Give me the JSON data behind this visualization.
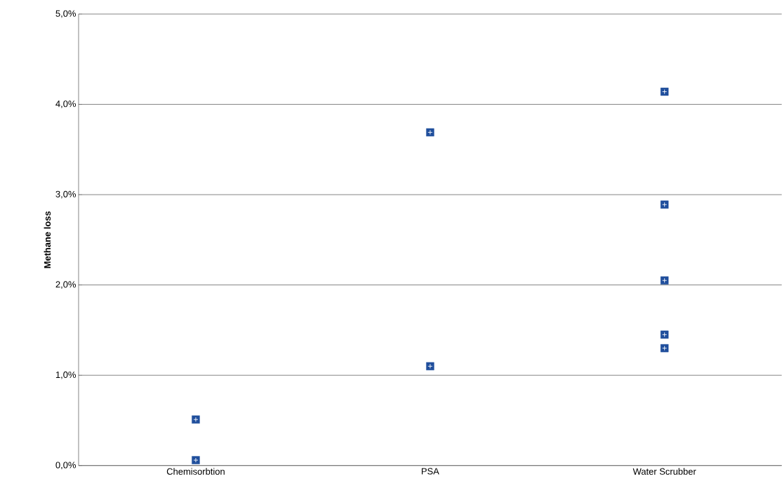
{
  "chart_data": {
    "type": "scatter",
    "ylabel": "Methane loss",
    "categories": [
      "Chemisorbtion",
      "PSA",
      "Water Scrubber"
    ],
    "series": [
      {
        "color": "#1f4e9c",
        "x": [
          "Chemisorbtion",
          "Chemisorbtion",
          "PSA",
          "PSA",
          "Water Scrubber",
          "Water Scrubber",
          "Water Scrubber",
          "Water Scrubber",
          "Water Scrubber"
        ],
        "values": [
          0.51,
          0.06,
          3.69,
          1.1,
          4.14,
          2.89,
          2.05,
          1.45,
          1.3
        ]
      }
    ],
    "ylim": [
      0,
      5
    ],
    "yticks": [
      {
        "value": 0,
        "label": "0,0%"
      },
      {
        "value": 1,
        "label": "1,0%"
      },
      {
        "value": 2,
        "label": "2,0%"
      },
      {
        "value": 3,
        "label": "3,0%"
      },
      {
        "value": 4,
        "label": "4,0%"
      },
      {
        "value": 5,
        "label": "5,0%"
      }
    ],
    "grid": "y",
    "marker": "square"
  }
}
